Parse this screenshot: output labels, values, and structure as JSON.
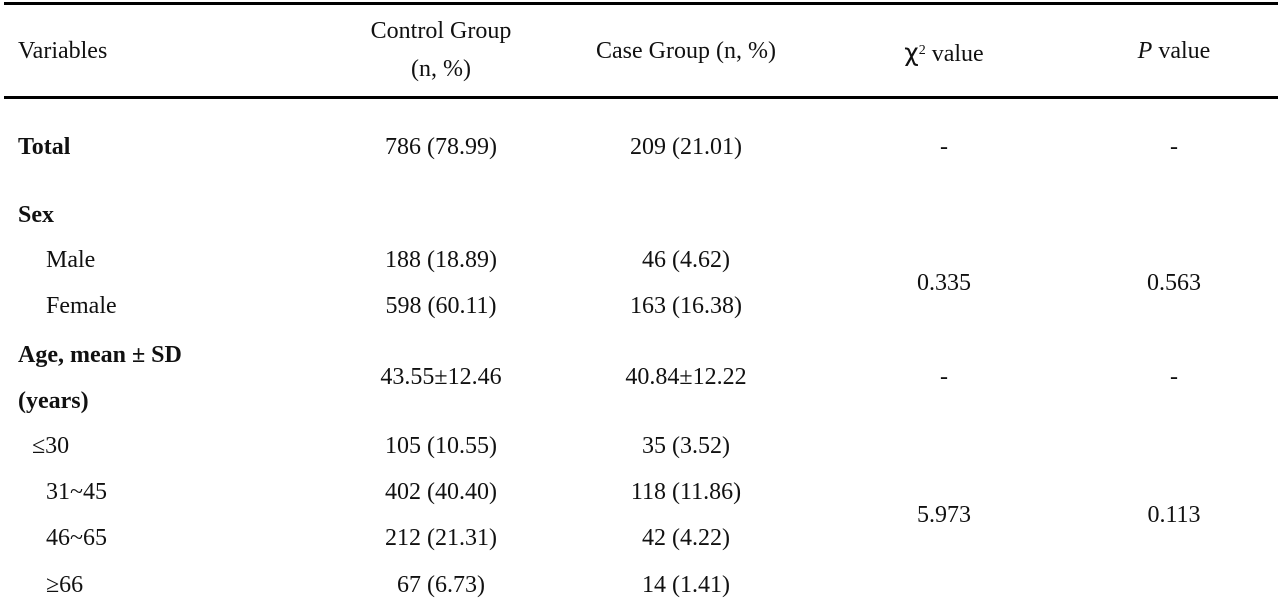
{
  "header": {
    "variables": "Variables",
    "control_line1": "Control Group",
    "control_line2": "(n, %)",
    "case": "Case Group (n, %)",
    "chi_symbol": "χ",
    "chi_sup": "2",
    "chi_rest": " value",
    "p_symbol": "P",
    "p_rest": " value"
  },
  "rows": {
    "total": {
      "label": "Total",
      "control": "786 (78.99)",
      "case": "209 (21.01)",
      "chi": "-",
      "p": "-"
    },
    "sex": {
      "label": "Sex",
      "male": {
        "label": "Male",
        "control": "188 (18.89)",
        "case": "46 (4.62)"
      },
      "female": {
        "label": "Female",
        "control": "598 (60.11)",
        "case": "163 (16.38)"
      },
      "chi": "0.335",
      "p": "0.563"
    },
    "age": {
      "label_line1": "Age, mean ± SD",
      "label_line2": "(years)",
      "control": "43.55±12.46",
      "case": "40.84±12.22",
      "chi": "-",
      "p": "-"
    },
    "age_groups": {
      "g1": {
        "label": "≤30",
        "control": "105 (10.55)",
        "case": "35 (3.52)"
      },
      "g2": {
        "label": "31~45",
        "control": "402 (40.40)",
        "case": "118 (11.86)"
      },
      "g3": {
        "label": "46~65",
        "control": "212 (21.31)",
        "case": "42 (4.22)"
      },
      "g4": {
        "label": "≥66",
        "control": "67 (6.73)",
        "case": "14 (1.41)"
      },
      "chi": "5.973",
      "p": "0.113"
    }
  }
}
